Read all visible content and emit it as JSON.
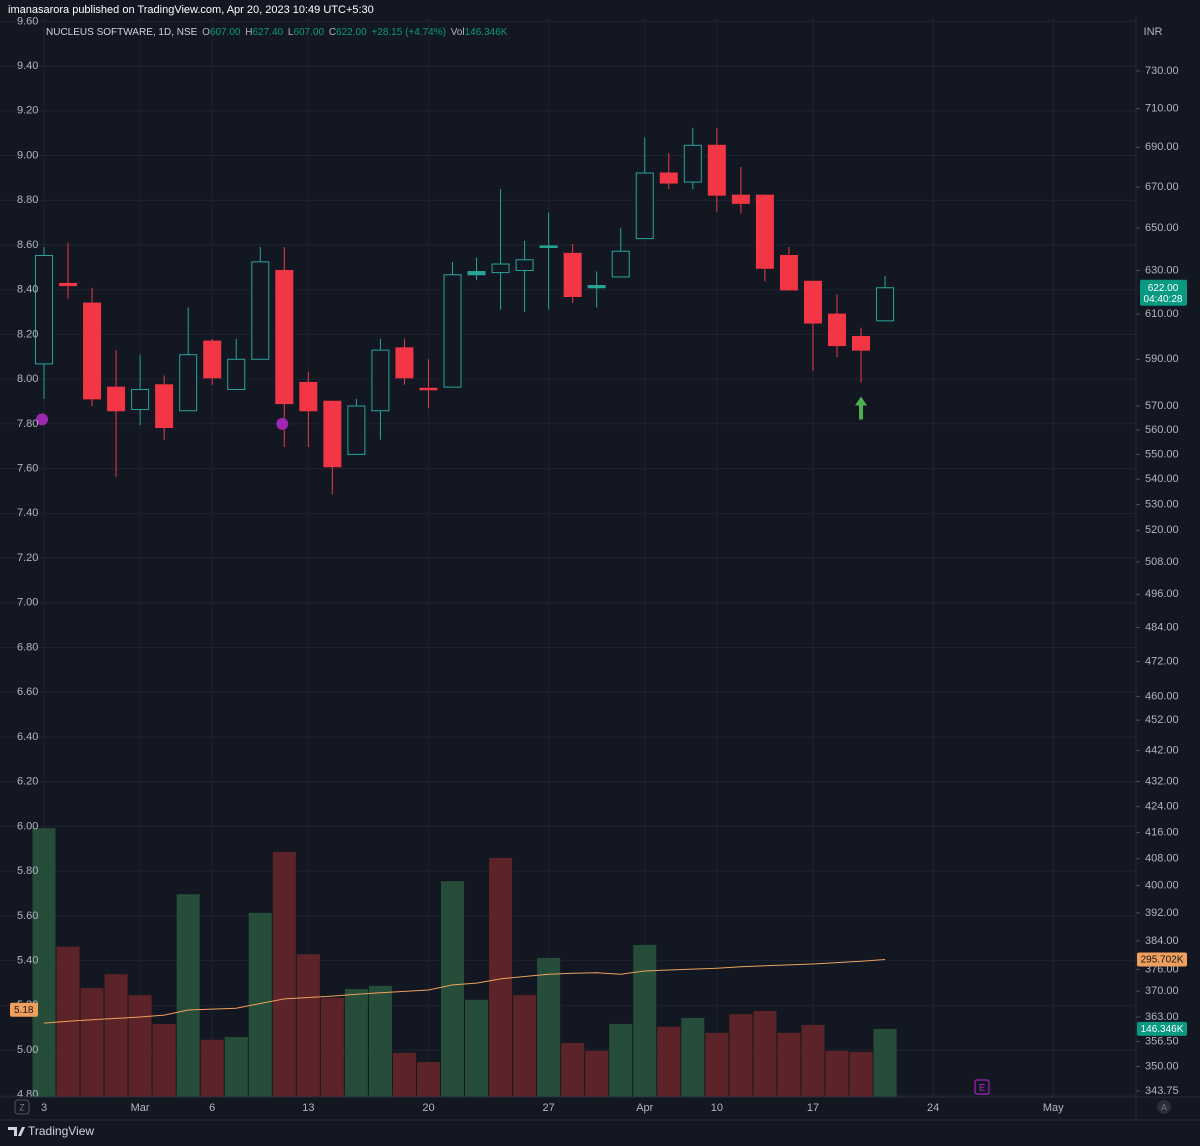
{
  "header": "imanasarora published on TradingView.com, Apr 20, 2023 10:49 UTC+5:30",
  "footer": "TradingView",
  "chart_data": {
    "type": "candlestick",
    "legend": {
      "symbol": "NUCLEUS SOFTWARE, 1D, NSE",
      "open_label": "O",
      "open": "607.00",
      "high_label": "H",
      "high": "627.40",
      "low_label": "L",
      "low": "607.00",
      "close_label": "C",
      "close": "622.00",
      "change": "+28.15 (+4.74%)"
    },
    "categories": [
      "3",
      null,
      null,
      null,
      "Mar",
      null,
      null,
      "6",
      null,
      null,
      null,
      "13",
      null,
      null,
      null,
      null,
      "20",
      null,
      null,
      null,
      null,
      "27",
      null,
      null,
      null,
      "Apr",
      null,
      null,
      "10",
      null,
      null,
      null,
      "17",
      null,
      null,
      null,
      null,
      "24",
      null,
      null,
      null,
      null,
      "May",
      null,
      null,
      null
    ],
    "open": [
      588,
      624,
      615,
      578,
      568.5,
      579,
      568,
      598,
      577,
      590,
      630,
      580,
      572,
      550,
      568,
      595,
      577.5,
      578,
      628,
      629,
      630,
      641,
      638,
      622,
      627,
      645,
      677,
      672.5,
      691,
      666,
      666,
      637,
      625,
      610,
      600,
      607,
      null,
      null,
      null,
      null,
      null,
      null,
      null,
      null,
      null,
      null
    ],
    "high": [
      641,
      643,
      622,
      594,
      592,
      583,
      613,
      599,
      599,
      641,
      641,
      584.5,
      572,
      573,
      599,
      599,
      590,
      634,
      636,
      669,
      644,
      657.5,
      642.5,
      629.5,
      650,
      695,
      687,
      700,
      700,
      680,
      666,
      641,
      625,
      619,
      604,
      627.4,
      null,
      null,
      null,
      null,
      null,
      null,
      null,
      null,
      null,
      null
    ],
    "low": [
      573,
      617,
      570,
      541,
      562,
      556,
      568,
      579,
      577,
      590,
      553,
      553,
      534,
      550,
      556,
      579,
      569,
      578,
      625.5,
      612,
      611,
      612,
      615,
      613,
      627,
      645,
      669,
      669,
      658,
      657,
      625,
      621,
      585,
      591,
      580,
      607,
      null,
      null,
      null,
      null,
      null,
      null,
      null,
      null,
      null,
      null
    ],
    "close": [
      637,
      623,
      573,
      568,
      577,
      561,
      592,
      582,
      590,
      634,
      571,
      568,
      545,
      570,
      594,
      582,
      577,
      628,
      629.5,
      633,
      635,
      641.5,
      618,
      623,
      639,
      677,
      672,
      691,
      666,
      662,
      631,
      621,
      606,
      596,
      594,
      622,
      null,
      null,
      null,
      null,
      null,
      null,
      null,
      null,
      null,
      null
    ],
    "up_color": "#26a69a",
    "down_color": "#f23645",
    "price_label": "622.00",
    "price_label_color": "#089981",
    "countdown": "04:40:28",
    "log_scale": true,
    "y_unit": "INR",
    "ylim": [
      342.2,
      759.1
    ],
    "yticks": [
      {
        "value": 730,
        "label": "730.00"
      },
      {
        "value": 710,
        "label": "710.00"
      },
      {
        "value": 690,
        "label": "690.00"
      },
      {
        "value": 670,
        "label": "670.00"
      },
      {
        "value": 650,
        "label": "650.00"
      },
      {
        "value": 630,
        "label": "630.00"
      },
      {
        "value": 610,
        "label": "610.00"
      },
      {
        "value": 590,
        "label": "590.00"
      },
      {
        "value": 570,
        "label": "570.00"
      },
      {
        "value": 560,
        "label": "560.00"
      },
      {
        "value": 550,
        "label": "550.00"
      },
      {
        "value": 540,
        "label": "540.00"
      },
      {
        "value": 530,
        "label": "530.00"
      },
      {
        "value": 520,
        "label": "520.00"
      },
      {
        "value": 508,
        "label": "508.00"
      },
      {
        "value": 496,
        "label": "496.00"
      },
      {
        "value": 484,
        "label": "484.00"
      },
      {
        "value": 472,
        "label": "472.00"
      },
      {
        "value": 460,
        "label": "460.00"
      },
      {
        "value": 452,
        "label": "452.00"
      },
      {
        "value": 442,
        "label": "442.00"
      },
      {
        "value": 432,
        "label": "432.00"
      },
      {
        "value": 424,
        "label": "424.00"
      },
      {
        "value": 416,
        "label": "416.00"
      },
      {
        "value": 408,
        "label": "408.00"
      },
      {
        "value": 400,
        "label": "400.00"
      },
      {
        "value": 392,
        "label": "392.00"
      },
      {
        "value": 384,
        "label": "384.00"
      },
      {
        "value": 376,
        "label": "376.00"
      },
      {
        "value": 370,
        "label": "370.00"
      },
      {
        "value": 363,
        "label": "363.00"
      },
      {
        "value": 356.5,
        "label": "356.50"
      },
      {
        "value": 350,
        "label": "350.00"
      },
      {
        "value": 343.75,
        "label": "343.75"
      }
    ],
    "y2lim": [
      4.79,
      9.615
    ],
    "y2ticks": [
      {
        "value": 9.6,
        "label": "9.60"
      },
      {
        "value": 9.4,
        "label": "9.40"
      },
      {
        "value": 9.2,
        "label": "9.20"
      },
      {
        "value": 9.0,
        "label": "9.00"
      },
      {
        "value": 8.8,
        "label": "8.80"
      },
      {
        "value": 8.6,
        "label": "8.60"
      },
      {
        "value": 8.4,
        "label": "8.40"
      },
      {
        "value": 8.2,
        "label": "8.20"
      },
      {
        "value": 8.0,
        "label": "8.00"
      },
      {
        "value": 7.8,
        "label": "7.80"
      },
      {
        "value": 7.6,
        "label": "7.60"
      },
      {
        "value": 7.4,
        "label": "7.40"
      },
      {
        "value": 7.2,
        "label": "7.20"
      },
      {
        "value": 7.0,
        "label": "7.00"
      },
      {
        "value": 6.8,
        "label": "6.80"
      },
      {
        "value": 6.6,
        "label": "6.60"
      },
      {
        "value": 6.4,
        "label": "6.40"
      },
      {
        "value": 6.2,
        "label": "6.20"
      },
      {
        "value": 6.0,
        "label": "6.00"
      },
      {
        "value": 5.8,
        "label": "5.80"
      },
      {
        "value": 5.6,
        "label": "5.60"
      },
      {
        "value": 5.4,
        "label": "5.40"
      },
      {
        "value": 5.2,
        "label": "5.20"
      },
      {
        "value": 5.0,
        "label": "5.00"
      },
      {
        "value": 4.8,
        "label": "4.80"
      }
    ],
    "y2_marker": 5.18,
    "y2_marker_color": "#f0a05c",
    "grid": true,
    "grid_color": "#1f2330",
    "signals": {
      "axis": "y2",
      "color": "#9c27b0",
      "values": [
        7.82,
        null,
        null,
        null,
        null,
        null,
        null,
        null,
        null,
        null,
        7.8,
        null,
        null,
        null,
        null,
        null,
        null,
        null,
        null,
        null,
        null,
        null,
        null,
        null,
        null,
        null,
        null,
        null,
        null,
        null,
        null,
        null,
        null,
        null,
        null,
        null,
        null,
        null,
        null,
        null,
        null,
        null,
        null,
        null,
        null,
        null
      ]
    },
    "arrows": {
      "color": "#4caf50",
      "values": [
        null,
        null,
        null,
        null,
        null,
        null,
        null,
        null,
        null,
        null,
        null,
        null,
        null,
        null,
        null,
        null,
        null,
        null,
        null,
        null,
        null,
        null,
        null,
        null,
        null,
        null,
        null,
        null,
        null,
        null,
        null,
        null,
        null,
        null,
        574,
        null,
        null,
        null,
        null,
        null,
        null,
        null,
        null,
        null,
        null,
        null
      ]
    },
    "volume": {
      "name": "Vol",
      "vlim": [
        0,
        2320000
      ],
      "values": [
        578000,
        323000,
        234000,
        264000,
        219000,
        157000,
        436000,
        123000,
        129000,
        396000,
        527000,
        307000,
        213000,
        232000,
        239000,
        95000,
        75000,
        464000,
        209000,
        514000,
        219000,
        299000,
        116000,
        99000,
        157000,
        327000,
        151000,
        170000,
        138000,
        178000,
        185000,
        138000,
        155000,
        99000,
        97000,
        146346,
        null,
        null,
        null,
        null,
        null,
        null,
        null,
        null,
        null,
        null
      ],
      "value_labels": [
        null,
        null,
        null,
        null,
        null,
        null,
        null,
        null,
        null,
        null,
        null,
        null,
        null,
        null,
        null,
        null,
        null,
        null,
        null,
        null,
        null,
        null,
        null,
        null,
        null,
        null,
        null,
        null,
        null,
        null,
        null,
        null,
        null,
        null,
        null,
        "146.346K",
        null,
        null,
        null,
        null,
        null,
        null,
        null,
        null,
        null,
        null
      ],
      "label_color": "#089981",
      "colors": [
        "#264d3a",
        "#5c2428",
        "#5c2428",
        "#5c2428",
        "#5c2428",
        "#5c2428",
        "#264d3a",
        "#5c2428",
        "#264d3a",
        "#264d3a",
        "#5c2428",
        "#5c2428",
        "#5c2428",
        "#264d3a",
        "#264d3a",
        "#5c2428",
        "#5c2428",
        "#264d3a",
        "#264d3a",
        "#5c2428",
        "#5c2428",
        "#264d3a",
        "#5c2428",
        "#5c2428",
        "#264d3a",
        "#264d3a",
        "#5c2428",
        "#264d3a",
        "#5c2428",
        "#5c2428",
        "#5c2428",
        "#5c2428",
        "#5c2428",
        "#5c2428",
        "#5c2428",
        "#264d3a",
        null,
        null,
        null,
        null,
        null,
        null,
        null,
        null,
        null,
        null
      ]
    },
    "volume_ma": {
      "color": "#f0a05c",
      "values": [
        159000,
        163000,
        166000,
        169000,
        172000,
        176000,
        187000,
        189000,
        191000,
        201000,
        211000,
        214000,
        217000,
        221000,
        224000,
        227000,
        230000,
        241000,
        245000,
        254000,
        259000,
        264000,
        266000,
        267000,
        264000,
        271000,
        273000,
        275000,
        277000,
        280000,
        282000,
        284000,
        286000,
        289000,
        292000,
        295702,
        null,
        null,
        null,
        null,
        null,
        null,
        null,
        null,
        null,
        null
      ],
      "value_labels": [
        null,
        null,
        null,
        null,
        null,
        null,
        null,
        null,
        null,
        null,
        null,
        null,
        null,
        null,
        null,
        null,
        null,
        null,
        null,
        null,
        null,
        null,
        null,
        null,
        null,
        null,
        null,
        null,
        null,
        null,
        null,
        null,
        null,
        null,
        null,
        "295.702K",
        null,
        null,
        null,
        null,
        null,
        null,
        null,
        null,
        null,
        null
      ]
    },
    "event_label": "E",
    "event_color": "#c224d6",
    "corner_left": "Z",
    "corner_right": "A"
  }
}
